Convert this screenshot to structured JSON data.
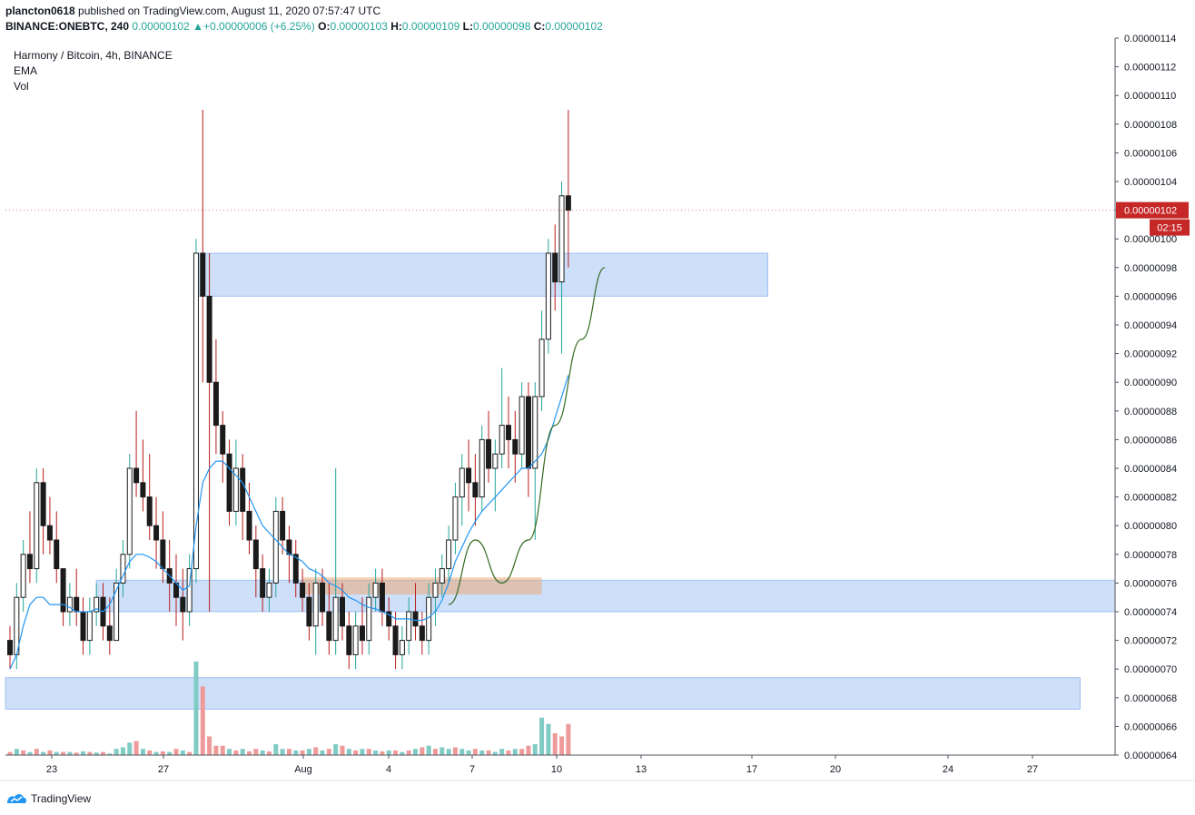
{
  "header": {
    "author": "plancton0618",
    "published_text": "published on TradingView.com, August 11, 2020 07:57:47 UTC",
    "symbol": "BINANCE:ONEBTC, 240",
    "last": "0.00000102",
    "change": "+0.00000006 (+6.25%)",
    "o_label": "O:",
    "o": "0.00000103",
    "h_label": "H:",
    "h": "0.00000109",
    "l_label": "L:",
    "l": "0.00000098",
    "c_label": "C:",
    "c": "0.00000102"
  },
  "legend": {
    "title": "Harmony / Bitcoin, 4h, BINANCE",
    "ema": "EMA",
    "vol": "Vol"
  },
  "price_tag": {
    "value": "0.00000102",
    "countdown": "02:15"
  },
  "footer": {
    "brand": "TradingView"
  },
  "colors": {
    "up": "#26a69a",
    "down": "#ef5350",
    "wick_down": "#b71c1c",
    "ema": "#2196f3",
    "zone": "#4f8bea",
    "orange_zone": "#f0a060",
    "path": "#33691e",
    "price_tag": "#c62828"
  },
  "chart_data": {
    "type": "candlestick",
    "title": "Harmony / Bitcoin, 4h, BINANCE",
    "y_axis": {
      "ticks": [
        "0.00000064",
        "0.00000066",
        "0.00000068",
        "0.00000070",
        "0.00000072",
        "0.00000074",
        "0.00000076",
        "0.00000078",
        "0.00000080",
        "0.00000082",
        "0.00000084",
        "0.00000086",
        "0.00000088",
        "0.00000090",
        "0.00000092",
        "0.00000094",
        "0.00000096",
        "0.00000098",
        "0.00000100",
        "0.00000102",
        "0.00000104",
        "0.00000106",
        "0.00000108",
        "0.00000110",
        "0.00000112",
        "0.00000114"
      ],
      "range": [
        6.4e-07,
        1.14e-06
      ]
    },
    "x_axis": {
      "labels": [
        "23",
        "27",
        "Aug",
        "4",
        "7",
        "10",
        "13",
        "17",
        "20",
        "24",
        "27"
      ],
      "range": [
        "2020-07-21T08:00",
        "2020-07-31T08:00"
      ]
    },
    "candles_note": "OHLC per 4h bar, prices in satoshi (1e-8 BTC)",
    "candles": [
      [
        72,
        73,
        70,
        71
      ],
      [
        71,
        76,
        70,
        75
      ],
      [
        75,
        79,
        74,
        78
      ],
      [
        78,
        81,
        76,
        77
      ],
      [
        77,
        84,
        76,
        83
      ],
      [
        83,
        84,
        78,
        80
      ],
      [
        80,
        82,
        78,
        79
      ],
      [
        79,
        81,
        76,
        77
      ],
      [
        77,
        77,
        73,
        74
      ],
      [
        74,
        76,
        73,
        75
      ],
      [
        75,
        77,
        73,
        74
      ],
      [
        74,
        75,
        71,
        72
      ],
      [
        72,
        75,
        71,
        74
      ],
      [
        74,
        76,
        73,
        75
      ],
      [
        75,
        76,
        72,
        73
      ],
      [
        73,
        75,
        71,
        72
      ],
      [
        72,
        77,
        72,
        76
      ],
      [
        76,
        79,
        75,
        78
      ],
      [
        78,
        85,
        77,
        84
      ],
      [
        84,
        88,
        82,
        83
      ],
      [
        83,
        86,
        81,
        82
      ],
      [
        82,
        85,
        79,
        80
      ],
      [
        80,
        82,
        77,
        79
      ],
      [
        79,
        81,
        76,
        77
      ],
      [
        77,
        79,
        74,
        76
      ],
      [
        76,
        78,
        73,
        75
      ],
      [
        75,
        77,
        72,
        74
      ],
      [
        74,
        78,
        73,
        77
      ],
      [
        77,
        100,
        76,
        99
      ],
      [
        99,
        109,
        90,
        96
      ],
      [
        96,
        99,
        74,
        90
      ],
      [
        90,
        93,
        85,
        87
      ],
      [
        87,
        88,
        83,
        85
      ],
      [
        85,
        86,
        80,
        81
      ],
      [
        81,
        86,
        80,
        84
      ],
      [
        84,
        85,
        79,
        81
      ],
      [
        81,
        83,
        78,
        79
      ],
      [
        79,
        80,
        75,
        77
      ],
      [
        77,
        78,
        74,
        75
      ],
      [
        75,
        77,
        74,
        76
      ],
      [
        76,
        82,
        75,
        81
      ],
      [
        81,
        82,
        78,
        79
      ],
      [
        79,
        80,
        76,
        78
      ],
      [
        78,
        79,
        75,
        76
      ],
      [
        76,
        77,
        74,
        75
      ],
      [
        75,
        76,
        72,
        73
      ],
      [
        73,
        77,
        71,
        76
      ],
      [
        76,
        77,
        73,
        74
      ],
      [
        74,
        76,
        71,
        72
      ],
      [
        72,
        84,
        71,
        75
      ],
      [
        75,
        76,
        72,
        73
      ],
      [
        73,
        74,
        70,
        71
      ],
      [
        71,
        74,
        70,
        73
      ],
      [
        73,
        75,
        71,
        72
      ],
      [
        72,
        76,
        71,
        75
      ],
      [
        75,
        77,
        74,
        76
      ],
      [
        76,
        77,
        73,
        74
      ],
      [
        74,
        75,
        72,
        73
      ],
      [
        73,
        74,
        70,
        71
      ],
      [
        71,
        73,
        70,
        72
      ],
      [
        72,
        75,
        71,
        74
      ],
      [
        74,
        76,
        72,
        73
      ],
      [
        73,
        74,
        71,
        72
      ],
      [
        72,
        76,
        71,
        75
      ],
      [
        75,
        77,
        73,
        76
      ],
      [
        76,
        78,
        75,
        77
      ],
      [
        77,
        80,
        76,
        79
      ],
      [
        79,
        83,
        78,
        82
      ],
      [
        82,
        85,
        80,
        84
      ],
      [
        84,
        86,
        81,
        83
      ],
      [
        83,
        85,
        80,
        82
      ],
      [
        82,
        87,
        81,
        86
      ],
      [
        86,
        88,
        83,
        84
      ],
      [
        84,
        86,
        81,
        85
      ],
      [
        85,
        91,
        84,
        87
      ],
      [
        87,
        89,
        84,
        86
      ],
      [
        86,
        88,
        83,
        85
      ],
      [
        85,
        90,
        84,
        89
      ],
      [
        89,
        90,
        82,
        84
      ],
      [
        84,
        90,
        79,
        89
      ],
      [
        89,
        95,
        88,
        93
      ],
      [
        93,
        100,
        92,
        99
      ],
      [
        99,
        101,
        95,
        97
      ],
      [
        97,
        104,
        92,
        103
      ],
      [
        103,
        109,
        98,
        102
      ]
    ],
    "volume_scale": [
      0,
      12
    ],
    "volumes": [
      [
        1,
        "d"
      ],
      [
        2,
        "u"
      ],
      [
        1.5,
        "d"
      ],
      [
        1,
        "u"
      ],
      [
        2,
        "d"
      ],
      [
        1,
        "u"
      ],
      [
        1.5,
        "d"
      ],
      [
        1,
        "u"
      ],
      [
        1,
        "d"
      ],
      [
        1,
        "u"
      ],
      [
        0.8,
        "d"
      ],
      [
        1.2,
        "u"
      ],
      [
        1,
        "d"
      ],
      [
        0.8,
        "u"
      ],
      [
        1,
        "d"
      ],
      [
        0.5,
        "u"
      ],
      [
        2,
        "u"
      ],
      [
        2.5,
        "u"
      ],
      [
        4,
        "u"
      ],
      [
        4.5,
        "d"
      ],
      [
        2,
        "u"
      ],
      [
        1.5,
        "d"
      ],
      [
        1,
        "u"
      ],
      [
        1.2,
        "d"
      ],
      [
        1,
        "u"
      ],
      [
        2,
        "d"
      ],
      [
        1.5,
        "u"
      ],
      [
        1,
        "d"
      ],
      [
        30,
        "u"
      ],
      [
        22,
        "d"
      ],
      [
        6,
        "d"
      ],
      [
        3,
        "d"
      ],
      [
        3,
        "d"
      ],
      [
        2,
        "u"
      ],
      [
        1.5,
        "d"
      ],
      [
        2,
        "u"
      ],
      [
        1.2,
        "d"
      ],
      [
        2,
        "d"
      ],
      [
        1.5,
        "u"
      ],
      [
        1.2,
        "d"
      ],
      [
        3.5,
        "u"
      ],
      [
        2,
        "u"
      ],
      [
        2,
        "d"
      ],
      [
        1.5,
        "u"
      ],
      [
        1.5,
        "d"
      ],
      [
        2,
        "u"
      ],
      [
        2.5,
        "d"
      ],
      [
        1.5,
        "u"
      ],
      [
        2,
        "d"
      ],
      [
        3.5,
        "u"
      ],
      [
        3,
        "d"
      ],
      [
        2,
        "u"
      ],
      [
        1.5,
        "d"
      ],
      [
        2,
        "u"
      ],
      [
        2,
        "d"
      ],
      [
        1.5,
        "u"
      ],
      [
        1.2,
        "d"
      ],
      [
        1.5,
        "u"
      ],
      [
        1.5,
        "d"
      ],
      [
        1,
        "u"
      ],
      [
        1.5,
        "d"
      ],
      [
        2,
        "u"
      ],
      [
        2.5,
        "d"
      ],
      [
        3,
        "u"
      ],
      [
        2,
        "d"
      ],
      [
        2.5,
        "u"
      ],
      [
        2,
        "u"
      ],
      [
        2.5,
        "d"
      ],
      [
        2,
        "u"
      ],
      [
        1.5,
        "u"
      ],
      [
        2,
        "d"
      ],
      [
        1.5,
        "u"
      ],
      [
        1.5,
        "d"
      ],
      [
        1,
        "u"
      ],
      [
        2,
        "u"
      ],
      [
        1.5,
        "d"
      ],
      [
        2,
        "u"
      ],
      [
        2,
        "d"
      ],
      [
        3,
        "d"
      ],
      [
        3.5,
        "u"
      ],
      [
        12,
        "u"
      ],
      [
        10,
        "u"
      ],
      [
        7,
        "d"
      ],
      [
        6,
        "d"
      ],
      [
        10,
        "d"
      ]
    ],
    "ema_values": [
      70,
      71,
      73,
      74.5,
      75,
      75,
      74.5,
      74.5,
      74.5,
      74.3,
      74,
      74,
      74,
      74.2,
      74,
      74.5,
      75.5,
      76.5,
      77.5,
      78,
      78,
      77.8,
      77.5,
      77,
      76.5,
      76,
      75.5,
      75.8,
      80,
      83,
      84,
      84.5,
      84.5,
      84,
      83.5,
      83,
      82,
      81,
      80,
      79.5,
      79,
      78.5,
      78,
      77.8,
      77.5,
      77,
      76.8,
      76.5,
      76,
      75.8,
      75.5,
      75,
      74.8,
      74.5,
      74.3,
      74.2,
      74,
      73.8,
      73.5,
      73.5,
      73.5,
      73.4,
      73.4,
      73.6,
      74,
      74.8,
      76,
      77.5,
      78.5,
      79.5,
      80.3,
      81,
      81.5,
      82,
      82.5,
      83,
      83.5,
      84,
      84,
      84.5,
      85,
      86,
      87.5,
      89,
      90.5
    ],
    "zones": [
      {
        "from": 96,
        "to": 99,
        "x_start": 28,
        "x_end": 114
      },
      {
        "from": 74,
        "to": 76.2,
        "x_start": 13,
        "x_end": 196
      },
      {
        "from": 67.2,
        "to": 69.4,
        "x_start": 0,
        "x_end": 161
      }
    ],
    "orange_zone": {
      "from": 75.2,
      "to": 76.4,
      "x_start": 44,
      "x_end": 80
    },
    "projection_path": [
      [
        66,
        74.5
      ],
      [
        70,
        79
      ],
      [
        74,
        76
      ],
      [
        78,
        79
      ],
      [
        82,
        87
      ],
      [
        86,
        93
      ],
      [
        89.5,
        98
      ]
    ]
  }
}
